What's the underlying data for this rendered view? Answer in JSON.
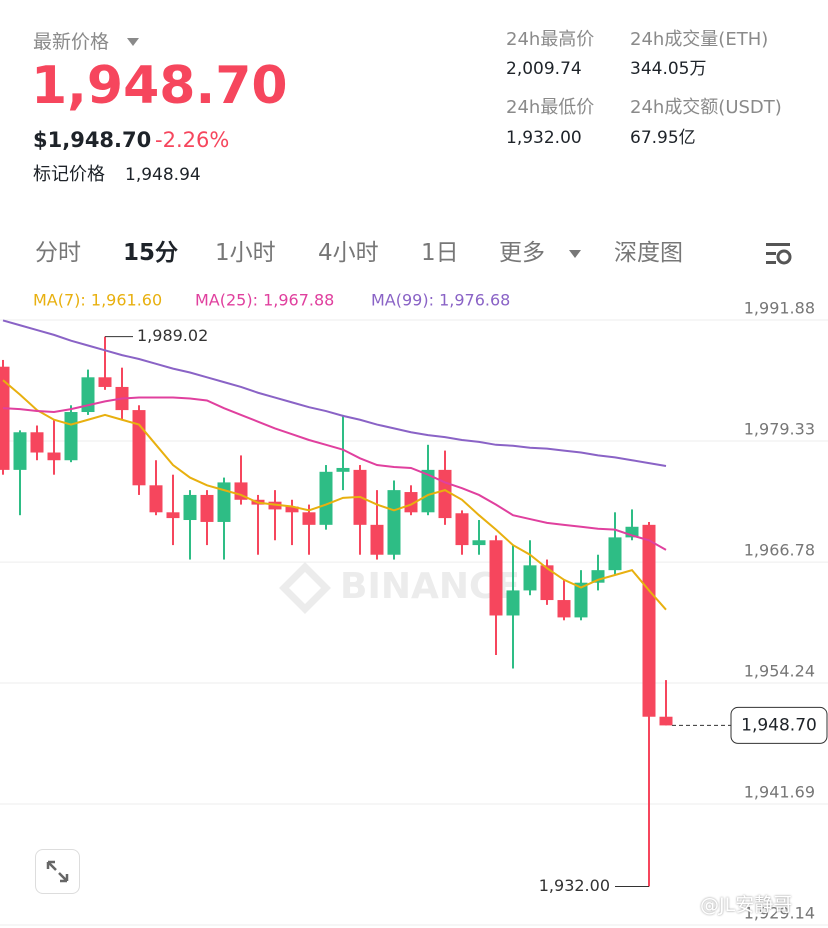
{
  "header": {
    "latest_label": "最新价格",
    "price": "1,948.70",
    "usd_price": "$1,948.70",
    "change": "-2.26%",
    "mark_label": "标记价格",
    "mark_price": "1,948.94",
    "stats": [
      {
        "label": "24h最高价",
        "value": "2,009.74"
      },
      {
        "label": "24h成交量(ETH)",
        "value": "344.05万"
      },
      {
        "label": "24h最低价",
        "value": "1,932.00"
      },
      {
        "label": "24h成交额(USDT)",
        "value": "67.95亿"
      }
    ]
  },
  "tabs": {
    "items": [
      "分时",
      "15分",
      "1小时",
      "4小时",
      "1日",
      "更多",
      "深度图"
    ],
    "active": 1
  },
  "chart_data": {
    "type": "candlestick",
    "ylim": [
      1927.69,
      1994.58
    ],
    "grid": true,
    "up_color": "#2ebd85",
    "down_color": "#f6465d",
    "yticks": [
      {
        "value": 1991.88,
        "label": "1,991.88"
      },
      {
        "value": 1979.33,
        "label": "1,979.33"
      },
      {
        "value": 1966.78,
        "label": "1,966.78"
      },
      {
        "value": 1954.24,
        "label": "1,954.24"
      },
      {
        "value": 1941.69,
        "label": "1,941.69"
      },
      {
        "value": 1929.14,
        "label": "1,929.14"
      }
    ],
    "candles": [
      {
        "open": 1985.9,
        "high": 1986.6,
        "low": 1974.7,
        "close": 1975.2
      },
      {
        "open": 1975.2,
        "high": 1979.3,
        "low": 1970.5,
        "close": 1979.1
      },
      {
        "open": 1979.1,
        "high": 1979.8,
        "low": 1976.2,
        "close": 1977.0
      },
      {
        "open": 1977.0,
        "high": 1980.4,
        "low": 1974.7,
        "close": 1976.2
      },
      {
        "open": 1976.2,
        "high": 1981.9,
        "low": 1976.0,
        "close": 1981.2
      },
      {
        "open": 1981.2,
        "high": 1985.6,
        "low": 1980.9,
        "close": 1984.8
      },
      {
        "open": 1984.8,
        "high": 1989.02,
        "low": 1983.5,
        "close": 1983.8
      },
      {
        "open": 1983.8,
        "high": 1985.8,
        "low": 1980.4,
        "close": 1981.4
      },
      {
        "open": 1981.4,
        "high": 1981.9,
        "low": 1972.6,
        "close": 1973.6
      },
      {
        "open": 1973.6,
        "high": 1976.2,
        "low": 1970.5,
        "close": 1970.8
      },
      {
        "open": 1970.8,
        "high": 1974.7,
        "low": 1967.4,
        "close": 1970.2
      },
      {
        "open": 1970.0,
        "high": 1973.1,
        "low": 1965.9,
        "close": 1972.6
      },
      {
        "open": 1972.6,
        "high": 1973.1,
        "low": 1967.4,
        "close": 1969.8
      },
      {
        "open": 1969.8,
        "high": 1974.4,
        "low": 1965.9,
        "close": 1973.9
      },
      {
        "open": 1973.9,
        "high": 1976.7,
        "low": 1971.6,
        "close": 1972.1
      },
      {
        "open": 1972.1,
        "high": 1972.6,
        "low": 1966.4,
        "close": 1971.6
      },
      {
        "open": 1971.9,
        "high": 1973.1,
        "low": 1967.9,
        "close": 1971.1
      },
      {
        "open": 1971.4,
        "high": 1972.1,
        "low": 1967.4,
        "close": 1970.8
      },
      {
        "open": 1970.8,
        "high": 1971.6,
        "low": 1966.4,
        "close": 1969.5
      },
      {
        "open": 1969.5,
        "high": 1975.7,
        "low": 1969.0,
        "close": 1975.0
      },
      {
        "open": 1975.0,
        "high": 1980.9,
        "low": 1973.1,
        "close": 1975.4
      },
      {
        "open": 1975.2,
        "high": 1975.7,
        "low": 1966.4,
        "close": 1969.5
      },
      {
        "open": 1969.5,
        "high": 1973.1,
        "low": 1965.9,
        "close": 1966.4
      },
      {
        "open": 1966.4,
        "high": 1974.1,
        "low": 1965.9,
        "close": 1973.1
      },
      {
        "open": 1972.9,
        "high": 1973.6,
        "low": 1970.5,
        "close": 1970.8
      },
      {
        "open": 1970.8,
        "high": 1977.8,
        "low": 1970.5,
        "close": 1975.2
      },
      {
        "open": 1975.2,
        "high": 1977.2,
        "low": 1969.5,
        "close": 1970.2
      },
      {
        "open": 1970.7,
        "high": 1971.0,
        "low": 1966.4,
        "close": 1967.4
      },
      {
        "open": 1967.4,
        "high": 1970.0,
        "low": 1966.4,
        "close": 1967.9
      },
      {
        "open": 1967.9,
        "high": 1968.4,
        "low": 1956.0,
        "close": 1960.1
      },
      {
        "open": 1960.1,
        "high": 1967.4,
        "low": 1954.6,
        "close": 1962.7
      },
      {
        "open": 1962.7,
        "high": 1967.9,
        "low": 1962.2,
        "close": 1965.3
      },
      {
        "open": 1965.3,
        "high": 1965.9,
        "low": 1961.2,
        "close": 1961.7
      },
      {
        "open": 1961.7,
        "high": 1963.8,
        "low": 1959.6,
        "close": 1959.9
      },
      {
        "open": 1959.9,
        "high": 1964.8,
        "low": 1959.6,
        "close": 1963.5
      },
      {
        "open": 1963.5,
        "high": 1966.4,
        "low": 1962.7,
        "close": 1964.8
      },
      {
        "open": 1964.8,
        "high": 1970.8,
        "low": 1964.3,
        "close": 1968.2
      },
      {
        "open": 1968.2,
        "high": 1971.1,
        "low": 1967.9,
        "close": 1969.3
      },
      {
        "open": 1969.5,
        "high": 1969.8,
        "low": 1932.0,
        "close": 1949.6
      },
      {
        "open": 1949.6,
        "high": 1953.4,
        "low": 1948.7,
        "close": 1948.7
      }
    ],
    "series": [
      {
        "label": "MA(7): 1,961.60",
        "color": "#e8b00f",
        "values": [
          1984.5,
          1983.0,
          1981.4,
          1980.4,
          1979.9,
          1980.4,
          1980.9,
          1980.4,
          1979.9,
          1977.8,
          1975.7,
          1974.4,
          1973.6,
          1973.1,
          1972.6,
          1971.8,
          1971.6,
          1971.4,
          1971.0,
          1971.6,
          1972.3,
          1972.4,
          1971.6,
          1971.0,
          1971.6,
          1972.6,
          1973.1,
          1972.1,
          1970.5,
          1969.0,
          1967.4,
          1966.4,
          1965.0,
          1963.8,
          1963.0,
          1963.8,
          1964.3,
          1964.8,
          1962.7,
          1960.7
        ]
      },
      {
        "label": "MA(25): 1,967.88",
        "color": "#e0409e",
        "values": [
          1981.6,
          1981.5,
          1981.3,
          1981.2,
          1981.5,
          1981.9,
          1982.3,
          1982.6,
          1982.7,
          1982.7,
          1982.7,
          1982.6,
          1982.4,
          1981.6,
          1980.9,
          1980.2,
          1979.5,
          1978.9,
          1978.3,
          1977.8,
          1977.3,
          1976.4,
          1975.7,
          1975.5,
          1975.4,
          1974.7,
          1973.9,
          1973.3,
          1972.6,
          1971.6,
          1970.5,
          1970.1,
          1969.7,
          1969.5,
          1969.3,
          1969.1,
          1969.0,
          1968.4,
          1967.9,
          1966.9
        ]
      },
      {
        "label": "MA(99): 1,976.68",
        "color": "#8a63c6",
        "values": [
          1990.7,
          1990.2,
          1989.7,
          1989.2,
          1988.6,
          1988.1,
          1987.6,
          1987.1,
          1986.7,
          1986.2,
          1985.7,
          1985.3,
          1984.8,
          1984.3,
          1983.8,
          1983.2,
          1982.7,
          1982.2,
          1981.7,
          1981.3,
          1980.8,
          1980.4,
          1979.9,
          1979.5,
          1979.1,
          1978.8,
          1978.6,
          1978.3,
          1978.1,
          1977.8,
          1977.7,
          1977.5,
          1977.4,
          1977.2,
          1977.0,
          1976.7,
          1976.5,
          1976.2,
          1975.9,
          1975.6
        ]
      }
    ],
    "high_annotation": {
      "value": 1989.02,
      "label": "1,989.02"
    },
    "low_annotation": {
      "value": 1932.0,
      "label": "1,932.00"
    },
    "last_price": {
      "value": 1948.7,
      "label": "1,948.70"
    },
    "watermark": "BINANCE"
  },
  "footer_watermark": "@JL安静哥"
}
